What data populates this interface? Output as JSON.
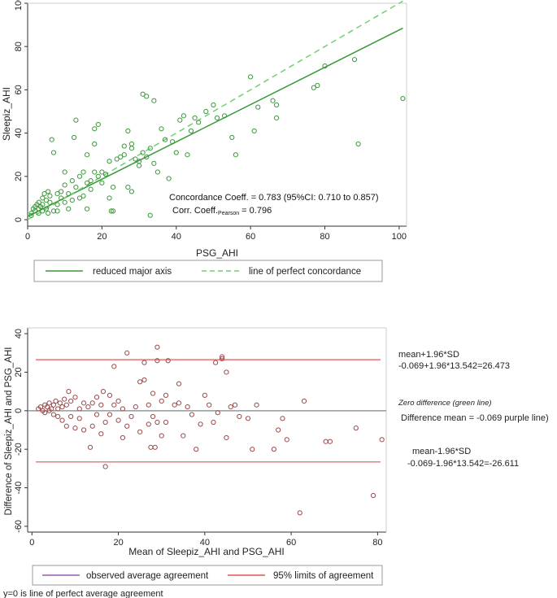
{
  "chart_data": [
    {
      "type": "scatter",
      "title": "",
      "xlabel": "PSG_AHI",
      "ylabel": "Sleepiz_AHI",
      "xlim": [
        0,
        102
      ],
      "ylim": [
        -3,
        100
      ],
      "xticks": [
        0,
        20,
        40,
        60,
        80,
        100
      ],
      "yticks": [
        0,
        20,
        40,
        60,
        80,
        100
      ],
      "grid": false,
      "legend_position": "bottom",
      "points_color": "#3a9a3a",
      "points": [
        [
          1,
          2
        ],
        [
          1,
          3
        ],
        [
          1.5,
          5
        ],
        [
          2,
          4
        ],
        [
          2,
          6
        ],
        [
          2.5,
          7
        ],
        [
          3,
          3
        ],
        [
          3,
          5
        ],
        [
          3,
          8
        ],
        [
          3.5,
          6
        ],
        [
          4,
          4
        ],
        [
          4,
          7
        ],
        [
          4,
          10
        ],
        [
          4.5,
          12
        ],
        [
          5,
          5
        ],
        [
          5,
          9
        ],
        [
          5.5,
          3
        ],
        [
          5.5,
          13
        ],
        [
          6,
          8
        ],
        [
          6,
          11
        ],
        [
          6.5,
          37
        ],
        [
          7,
          31
        ],
        [
          7,
          4
        ],
        [
          8,
          7
        ],
        [
          8,
          12
        ],
        [
          8,
          4
        ],
        [
          9,
          10
        ],
        [
          9,
          13
        ],
        [
          10,
          8
        ],
        [
          10,
          16
        ],
        [
          10,
          22
        ],
        [
          11,
          12
        ],
        [
          11,
          5
        ],
        [
          12,
          18
        ],
        [
          12,
          9
        ],
        [
          12.5,
          38
        ],
        [
          13,
          46
        ],
        [
          13,
          15
        ],
        [
          14,
          20
        ],
        [
          14,
          10
        ],
        [
          15,
          11
        ],
        [
          15,
          22
        ],
        [
          16,
          17
        ],
        [
          16,
          5
        ],
        [
          16,
          30
        ],
        [
          17,
          14
        ],
        [
          17,
          18
        ],
        [
          18,
          22
        ],
        [
          18,
          35
        ],
        [
          18,
          42
        ],
        [
          19,
          44
        ],
        [
          19,
          20
        ],
        [
          20,
          17
        ],
        [
          20,
          22
        ],
        [
          21,
          21
        ],
        [
          22,
          10
        ],
        [
          22,
          27
        ],
        [
          22.5,
          4
        ],
        [
          23,
          4
        ],
        [
          23,
          15
        ],
        [
          24,
          28
        ],
        [
          25,
          29
        ],
        [
          26,
          34
        ],
        [
          26,
          30
        ],
        [
          27,
          41
        ],
        [
          27,
          15
        ],
        [
          28,
          13
        ],
        [
          28,
          33
        ],
        [
          28,
          35
        ],
        [
          29,
          28
        ],
        [
          30,
          25
        ],
        [
          30,
          27
        ],
        [
          31,
          31
        ],
        [
          31,
          58
        ],
        [
          32,
          57
        ],
        [
          32,
          29
        ],
        [
          33,
          33
        ],
        [
          33,
          2
        ],
        [
          34,
          55
        ],
        [
          34,
          26
        ],
        [
          35,
          22
        ],
        [
          36,
          42
        ],
        [
          37,
          37
        ],
        [
          38,
          19
        ],
        [
          39,
          36
        ],
        [
          40,
          31
        ],
        [
          41,
          46
        ],
        [
          42,
          48
        ],
        [
          43,
          30
        ],
        [
          44,
          41
        ],
        [
          45,
          47
        ],
        [
          46,
          45
        ],
        [
          48,
          50
        ],
        [
          50,
          53
        ],
        [
          51,
          47
        ],
        [
          53,
          48
        ],
        [
          55,
          38
        ],
        [
          56,
          30
        ],
        [
          60,
          66
        ],
        [
          61,
          41
        ],
        [
          62,
          52
        ],
        [
          66,
          55
        ],
        [
          67,
          53
        ],
        [
          67,
          47
        ],
        [
          77,
          61
        ],
        [
          78,
          62
        ],
        [
          80,
          71
        ],
        [
          88,
          74
        ],
        [
          89,
          35
        ],
        [
          101,
          56
        ]
      ],
      "series": [
        {
          "name": "reduced major axis",
          "style": "solid",
          "color": "#3a9a3a",
          "x": [
            0,
            101
          ],
          "y": [
            1.5,
            88.5
          ]
        },
        {
          "name": "line of perfect concordance",
          "style": "dashed",
          "color": "#6fd06f",
          "x": [
            0,
            101
          ],
          "y": [
            0,
            101
          ]
        }
      ],
      "annotations": {
        "concordance": "Concordance Coeff. = 0.783 (95%CI: 0.710 to 0.857)",
        "corr_prefix": "Corr. Coeff.",
        "corr_sub": "Pearson",
        "corr_suffix": " = 0.796"
      }
    },
    {
      "type": "scatter",
      "title": "",
      "xlabel": "Mean of Sleepiz_AHI and PSG_AHI",
      "ylabel": "Difference of Sleepiz_AHI and PSG_AHI",
      "xlim": [
        -1,
        82
      ],
      "ylim": [
        -63,
        43
      ],
      "xticks": [
        0,
        20,
        40,
        60,
        80
      ],
      "yticks": [
        -60,
        -40,
        -20,
        0,
        20,
        40
      ],
      "grid": false,
      "legend_position": "bottom",
      "points_color": "#9b4a4a",
      "points": [
        [
          1.5,
          1
        ],
        [
          2,
          2
        ],
        [
          2.5,
          0
        ],
        [
          3,
          3
        ],
        [
          3,
          -1
        ],
        [
          3.5,
          2
        ],
        [
          4,
          4
        ],
        [
          4,
          0
        ],
        [
          4.5,
          1
        ],
        [
          5,
          -2
        ],
        [
          5,
          3
        ],
        [
          5.5,
          5
        ],
        [
          6,
          1
        ],
        [
          6,
          -3
        ],
        [
          6.5,
          4
        ],
        [
          7,
          2
        ],
        [
          7,
          -5
        ],
        [
          7.5,
          6
        ],
        [
          8,
          3
        ],
        [
          8,
          -8
        ],
        [
          8.5,
          10
        ],
        [
          9,
          5
        ],
        [
          9,
          -3
        ],
        [
          10,
          7
        ],
        [
          10,
          -9
        ],
        [
          11,
          1
        ],
        [
          11,
          -4
        ],
        [
          12,
          4
        ],
        [
          12,
          -10
        ],
        [
          13,
          2
        ],
        [
          13.5,
          -19
        ],
        [
          14,
          -8
        ],
        [
          14,
          4
        ],
        [
          15,
          -2
        ],
        [
          15,
          7
        ],
        [
          16,
          3
        ],
        [
          16,
          -12
        ],
        [
          16.5,
          10
        ],
        [
          17,
          -29
        ],
        [
          17,
          -6
        ],
        [
          18,
          8
        ],
        [
          18,
          -2
        ],
        [
          19,
          23
        ],
        [
          19,
          3
        ],
        [
          20,
          -5
        ],
        [
          20,
          5
        ],
        [
          21,
          -14
        ],
        [
          21,
          1
        ],
        [
          22,
          30
        ],
        [
          22,
          -8
        ],
        [
          23,
          -3
        ],
        [
          24,
          2
        ],
        [
          25,
          -11
        ],
        [
          25,
          15
        ],
        [
          26,
          25
        ],
        [
          26,
          16
        ],
        [
          27,
          -7
        ],
        [
          27,
          3
        ],
        [
          27.5,
          -19
        ],
        [
          28,
          9
        ],
        [
          28,
          -3
        ],
        [
          28.5,
          -19
        ],
        [
          29,
          26
        ],
        [
          29,
          33
        ],
        [
          29,
          -6
        ],
        [
          30,
          5
        ],
        [
          30,
          -13
        ],
        [
          31,
          8
        ],
        [
          31,
          -6
        ],
        [
          31.5,
          26
        ],
        [
          33,
          3
        ],
        [
          34,
          14
        ],
        [
          34,
          4
        ],
        [
          35,
          -13
        ],
        [
          36,
          2
        ],
        [
          37,
          -2
        ],
        [
          38,
          -20
        ],
        [
          39,
          -7
        ],
        [
          40,
          8
        ],
        [
          41,
          3
        ],
        [
          42,
          -6
        ],
        [
          42.5,
          25
        ],
        [
          43,
          -1
        ],
        [
          44,
          27
        ],
        [
          44,
          28
        ],
        [
          45,
          20
        ],
        [
          45,
          -14
        ],
        [
          46,
          2
        ],
        [
          47,
          3
        ],
        [
          48,
          -3
        ],
        [
          50,
          -4
        ],
        [
          51,
          -20
        ],
        [
          52,
          3
        ],
        [
          56,
          -20
        ],
        [
          57,
          -10
        ],
        [
          58,
          -4
        ],
        [
          59,
          -15
        ],
        [
          62,
          -53
        ],
        [
          63,
          5
        ],
        [
          68,
          -16
        ],
        [
          69,
          -16
        ],
        [
          75,
          -9
        ],
        [
          79,
          -44
        ],
        [
          81,
          -15
        ]
      ],
      "series": [
        {
          "name": "observed average agreement",
          "style": "solid",
          "color": "#9b59b6",
          "y": -0.069
        },
        {
          "name": "95% limits of agreement",
          "style": "solid",
          "color": "#e05555",
          "upper": 26.473,
          "lower": -26.611
        },
        {
          "name": "zero difference",
          "style": "solid",
          "color": "#5cb85c",
          "y": 0
        }
      ],
      "annotations": {
        "upper_title": "mean+1.96*SD",
        "upper_formula": "-0.069+1.96*13.542=26.473",
        "zero_label": "Zero difference (green line)",
        "diff_mean": "Difference mean = -0.069 purple line)",
        "lower_title": "mean-1.96*SD",
        "lower_formula": "-0.069-1.96*13.542=-26.611",
        "footnote": "y=0 is line of perfect average agreement"
      }
    }
  ]
}
